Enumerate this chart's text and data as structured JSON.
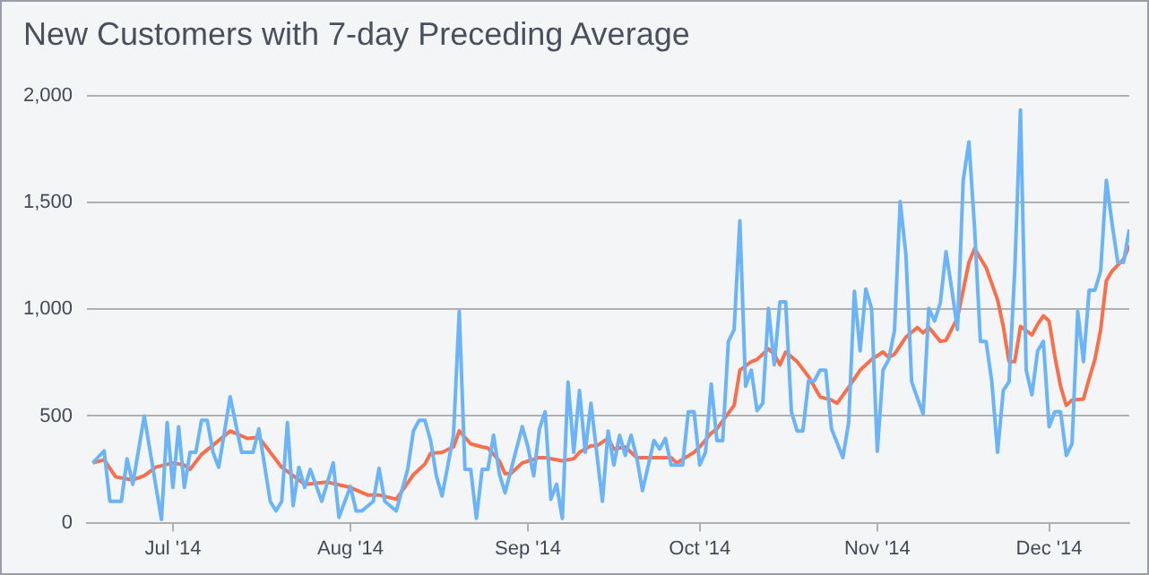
{
  "chart_data": {
    "type": "line",
    "title": "New Customers with 7-day Preceding Average",
    "xlim": [
      "2014-06-16",
      "2014-12-15"
    ],
    "xticks": [
      {
        "value": "2014-07-01",
        "label": "Jul '14"
      },
      {
        "value": "2014-08-01",
        "label": "Aug '14"
      },
      {
        "value": "2014-09-01",
        "label": "Sep '14"
      },
      {
        "value": "2014-10-01",
        "label": "Oct '14"
      },
      {
        "value": "2014-11-01",
        "label": "Nov '14"
      },
      {
        "value": "2014-12-01",
        "label": "Dec '14"
      }
    ],
    "ylim": [
      0,
      2000
    ],
    "yticks": [
      {
        "value": 0,
        "label": "0"
      },
      {
        "value": 500,
        "label": "500"
      },
      {
        "value": 1000,
        "label": "1,000"
      },
      {
        "value": 1500,
        "label": "1,500"
      },
      {
        "value": 2000,
        "label": "2,000"
      }
    ],
    "grid": "y",
    "legend": false,
    "marker": "none",
    "line_style": "solid",
    "series": [
      {
        "color": "#6ab4f7",
        "x": [
          "2014-06-17",
          "2014-06-19",
          "2014-06-20",
          "2014-06-22",
          "2014-06-23",
          "2014-06-24",
          "2014-06-26",
          "2014-06-29",
          "2014-06-30",
          "2014-07-01",
          "2014-07-02",
          "2014-07-03",
          "2014-07-04",
          "2014-07-05",
          "2014-07-06",
          "2014-07-07",
          "2014-07-08",
          "2014-07-09",
          "2014-07-11",
          "2014-07-13",
          "2014-07-15",
          "2014-07-16",
          "2014-07-18",
          "2014-07-19",
          "2014-07-20",
          "2014-07-21",
          "2014-07-22",
          "2014-07-23",
          "2014-07-24",
          "2014-07-25",
          "2014-07-27",
          "2014-07-29",
          "2014-07-30",
          "2014-08-01",
          "2014-08-02",
          "2014-08-03",
          "2014-08-05",
          "2014-08-06",
          "2014-08-07",
          "2014-08-09",
          "2014-08-11",
          "2014-08-12",
          "2014-08-13",
          "2014-08-14",
          "2014-08-15",
          "2014-08-16",
          "2014-08-17",
          "2014-08-19",
          "2014-08-20",
          "2014-08-21",
          "2014-08-22",
          "2014-08-23",
          "2014-08-24",
          "2014-08-25",
          "2014-08-26",
          "2014-08-27",
          "2014-08-28",
          "2014-08-31",
          "2014-09-01",
          "2014-09-02",
          "2014-09-03",
          "2014-09-04",
          "2014-09-05",
          "2014-09-06",
          "2014-09-07",
          "2014-09-08",
          "2014-09-09",
          "2014-09-10",
          "2014-09-11",
          "2014-09-12",
          "2014-09-14",
          "2014-09-15",
          "2014-09-16",
          "2014-09-17",
          "2014-09-18",
          "2014-09-19",
          "2014-09-20",
          "2014-09-21",
          "2014-09-23",
          "2014-09-24",
          "2014-09-25",
          "2014-09-26",
          "2014-09-28",
          "2014-09-29",
          "2014-09-30",
          "2014-10-01",
          "2014-10-02",
          "2014-10-03",
          "2014-10-04",
          "2014-10-05",
          "2014-10-06",
          "2014-10-07",
          "2014-10-08",
          "2014-10-09",
          "2014-10-10",
          "2014-10-11",
          "2014-10-12",
          "2014-10-13",
          "2014-10-14",
          "2014-10-15",
          "2014-10-16",
          "2014-10-17",
          "2014-10-18",
          "2014-10-19",
          "2014-10-20",
          "2014-10-21",
          "2014-10-22",
          "2014-10-23",
          "2014-10-24",
          "2014-10-26",
          "2014-10-27",
          "2014-10-28",
          "2014-10-29",
          "2014-10-30",
          "2014-10-31",
          "2014-11-01",
          "2014-11-02",
          "2014-11-03",
          "2014-11-04",
          "2014-11-05",
          "2014-11-06",
          "2014-11-07",
          "2014-11-09",
          "2014-11-10",
          "2014-11-11",
          "2014-11-12",
          "2014-11-13",
          "2014-11-14",
          "2014-11-15",
          "2014-11-16",
          "2014-11-17",
          "2014-11-18",
          "2014-11-19",
          "2014-11-20",
          "2014-11-21",
          "2014-11-22",
          "2014-11-23",
          "2014-11-24",
          "2014-11-25",
          "2014-11-26",
          "2014-11-27",
          "2014-11-28",
          "2014-11-29",
          "2014-11-30",
          "2014-12-01",
          "2014-12-02",
          "2014-12-03",
          "2014-12-04",
          "2014-12-05",
          "2014-12-06",
          "2014-12-07",
          "2014-12-08",
          "2014-12-09",
          "2014-12-10",
          "2014-12-11",
          "2014-12-12",
          "2014-12-13",
          "2014-12-14",
          "2014-12-15"
        ],
        "values": [
          280,
          337,
          100,
          100,
          300,
          180,
          500,
          15,
          470,
          165,
          450,
          165,
          330,
          330,
          480,
          480,
          330,
          260,
          590,
          330,
          330,
          440,
          100,
          55,
          100,
          470,
          80,
          260,
          165,
          250,
          100,
          280,
          25,
          170,
          55,
          55,
          100,
          255,
          100,
          55,
          250,
          430,
          480,
          480,
          385,
          220,
          125,
          410,
          990,
          250,
          250,
          20,
          250,
          250,
          410,
          230,
          140,
          450,
          355,
          220,
          440,
          520,
          110,
          180,
          20,
          660,
          330,
          620,
          330,
          560,
          100,
          430,
          270,
          410,
          315,
          410,
          305,
          150,
          385,
          345,
          395,
          270,
          270,
          520,
          520,
          270,
          330,
          650,
          385,
          385,
          850,
          905,
          1415,
          640,
          715,
          525,
          560,
          1005,
          740,
          1035,
          1035,
          520,
          430,
          430,
          665,
          665,
          715,
          715,
          440,
          305,
          470,
          1085,
          805,
          1095,
          1005,
          335,
          715,
          765,
          900,
          1505,
          1255,
          660,
          510,
          1005,
          945,
          1030,
          1270,
          1095,
          905,
          1605,
          1785,
          1375,
          850,
          850,
          660,
          330,
          620,
          660,
          1180,
          1935,
          715,
          600,
          805,
          850,
          450,
          520,
          520,
          315,
          370,
          990,
          755,
          1090,
          1090,
          1180,
          1605,
          1400,
          1220,
          1220,
          1375
        ]
      },
      {
        "color": "#f7704b",
        "x": [
          "2014-06-17",
          "2014-06-19",
          "2014-06-21",
          "2014-06-24",
          "2014-06-26",
          "2014-06-28",
          "2014-07-01",
          "2014-07-03",
          "2014-07-04",
          "2014-07-06",
          "2014-07-09",
          "2014-07-11",
          "2014-07-14",
          "2014-07-16",
          "2014-07-20",
          "2014-07-24",
          "2014-07-28",
          "2014-08-01",
          "2014-08-04",
          "2014-08-06",
          "2014-08-09",
          "2014-08-12",
          "2014-08-14",
          "2014-08-15",
          "2014-08-17",
          "2014-08-19",
          "2014-08-20",
          "2014-08-22",
          "2014-08-24",
          "2014-08-25",
          "2014-08-27",
          "2014-08-28",
          "2014-08-29",
          "2014-08-31",
          "2014-09-03",
          "2014-09-04",
          "2014-09-07",
          "2014-09-09",
          "2014-09-10",
          "2014-09-12",
          "2014-09-13",
          "2014-09-15",
          "2014-09-16",
          "2014-09-18",
          "2014-09-20",
          "2014-09-24",
          "2014-09-26",
          "2014-09-27",
          "2014-09-30",
          "2014-10-01",
          "2014-10-03",
          "2014-10-04",
          "2014-10-07",
          "2014-10-08",
          "2014-10-10",
          "2014-10-11",
          "2014-10-13",
          "2014-10-14",
          "2014-10-15",
          "2014-10-16",
          "2014-10-18",
          "2014-10-20",
          "2014-10-22",
          "2014-10-24",
          "2014-10-25",
          "2014-10-27",
          "2014-10-29",
          "2014-10-31",
          "2014-11-02",
          "2014-11-03",
          "2014-11-04",
          "2014-11-06",
          "2014-11-08",
          "2014-11-09",
          "2014-11-10",
          "2014-11-12",
          "2014-11-13",
          "2014-11-15",
          "2014-11-17",
          "2014-11-18",
          "2014-11-20",
          "2014-11-22",
          "2014-11-23",
          "2014-11-24",
          "2014-11-25",
          "2014-11-26",
          "2014-11-28",
          "2014-11-29",
          "2014-11-30",
          "2014-12-01",
          "2014-12-02",
          "2014-12-03",
          "2014-12-04",
          "2014-12-05",
          "2014-12-07",
          "2014-12-08",
          "2014-12-09",
          "2014-12-10",
          "2014-12-11",
          "2014-12-12",
          "2014-12-14",
          "2014-12-15"
        ],
        "values": [
          280,
          295,
          215,
          200,
          220,
          260,
          280,
          270,
          250,
          320,
          385,
          430,
          395,
          400,
          260,
          180,
          190,
          165,
          130,
          130,
          110,
          225,
          275,
          325,
          330,
          355,
          430,
          370,
          355,
          350,
          290,
          230,
          230,
          280,
          305,
          305,
          290,
          300,
          330,
          360,
          360,
          395,
          345,
          355,
          305,
          305,
          305,
          280,
          330,
          355,
          420,
          440,
          550,
          715,
          755,
          765,
          815,
          790,
          740,
          800,
          755,
          685,
          590,
          575,
          560,
          635,
          715,
          765,
          800,
          775,
          790,
          870,
          915,
          890,
          915,
          850,
          855,
          960,
          1220,
          1285,
          1195,
          1045,
          920,
          755,
          755,
          920,
          880,
          930,
          970,
          945,
          780,
          640,
          550,
          575,
          580,
          675,
          765,
          905,
          1135,
          1180,
          1235,
          1300
        ]
      }
    ]
  }
}
